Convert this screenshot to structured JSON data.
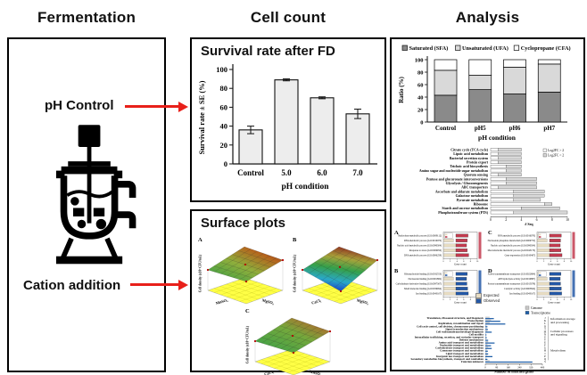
{
  "figure_titles": {
    "fermentation": "Fermentation",
    "cell_count": "Cell count",
    "analysis": "Analysis"
  },
  "fermentation_panel": {
    "ph_label": "pH Control",
    "cation_label": "Cation addition",
    "icon": "bioreactor-icon",
    "arrow_color": "#e8201a"
  },
  "chart_data": [
    {
      "id": "survival",
      "type": "bar",
      "title": "Survival rate after FD",
      "categories": [
        "Control",
        "5.0",
        "6.0",
        "7.0"
      ],
      "values": [
        36,
        89,
        70,
        53
      ],
      "errors": [
        4,
        1,
        1,
        5
      ],
      "xlabel": "pH condition",
      "ylabel": "Survival rate ± SE (%)",
      "ylim": [
        0,
        100
      ],
      "yticks": [
        0,
        20,
        40,
        60,
        80,
        100
      ],
      "bar_color": "#ededed"
    },
    {
      "id": "surfaces",
      "type": "surface",
      "title": "Surface plots",
      "zlabel": "Cell density (x10⁹ CFU/mL)",
      "floor_color": "#ffff45",
      "panels": [
        {
          "label": "A",
          "axis_left": "MnSO₄",
          "axis_right": "MgSO₄",
          "dip": false
        },
        {
          "label": "B",
          "axis_left": "CaCl₂",
          "axis_right": "MgSO₄",
          "dip": true
        },
        {
          "label": "C",
          "axis_left": "CaCl₂",
          "axis_right": "MnSO₄",
          "dip": false
        }
      ]
    },
    {
      "id": "fatty",
      "type": "stacked-bar",
      "categories": [
        "Control",
        "pH5",
        "pH6",
        "pH7"
      ],
      "series": [
        {
          "name": "Saturated (SFA)",
          "color": "#8a8a8a",
          "values": [
            43,
            52,
            45,
            48
          ]
        },
        {
          "name": "Unsaturated (UFA)",
          "color": "#d9d9d9",
          "values": [
            40,
            23,
            43,
            45
          ]
        },
        {
          "name": "Cyclopropane (CFA)",
          "color": "#ffffff",
          "values": [
            17,
            25,
            12,
            7
          ]
        }
      ],
      "xlabel": "pH condition",
      "ylabel": "Ratio (%)",
      "ylim": [
        0,
        100
      ],
      "yticks": [
        0,
        20,
        40,
        60,
        80,
        100
      ]
    },
    {
      "id": "kegg",
      "type": "stacked-hbar",
      "categories": [
        "Citrate cycle (TCA cycle)",
        "Lipoic acid metabolism",
        "Bacterial secretion system",
        "Protein export",
        "Teichoic acid biosynthesis",
        "Amino sugar and nucleotide sugar metabolism",
        "Quorum sensing",
        "Pentose and glucuronate interconversions",
        "Glycolysis / Gluconeogenesis",
        "ABC transporters",
        "Ascorbate and aldarate metabolism",
        "Galactose metabolism",
        "Pyruvate metabolism",
        "Ribosome",
        "Starch and sucrose metabolism",
        "Phosphotransferase system (PTS)"
      ],
      "series": [
        {
          "name": "Log2FC > 2",
          "color": "#ffffff",
          "values": [
            1,
            1,
            1,
            1,
            2,
            2,
            1,
            2,
            2,
            1,
            3,
            3,
            3,
            7,
            4,
            3
          ]
        },
        {
          "name": "Log2FC < 2",
          "color": "#d9d9d9",
          "values": [
            3,
            3,
            3,
            3,
            2,
            2,
            3,
            4,
            4,
            5,
            4,
            4,
            3.5,
            1,
            5,
            7
          ]
        }
      ],
      "xlabel": "# Seq",
      "xlim": [
        0,
        10
      ],
      "xticks": [
        0,
        2,
        4,
        6,
        8,
        10
      ]
    },
    {
      "id": "go",
      "type": "enrichment-panels",
      "legend": [
        "Expected",
        "Observed"
      ],
      "expected_color": "#e7dcc2",
      "xlabel": "Gene count",
      "xticks": [
        0,
        2,
        4,
        6,
        8,
        10
      ],
      "panels": [
        {
          "label": "A",
          "color": "#c23b4f",
          "categories": [
            "Nucleobase metabolic process (GO:0009112)",
            "RNA metabolic process (GO:0016070)",
            "Nucleic acid metabolic process (GO:0090304)",
            "Response to stress (GO:0006950)",
            "DNA metabolic process (GO:0006259)"
          ],
          "expected": [
            2,
            3,
            4,
            5,
            6
          ],
          "observed": [
            3.4,
            3.2,
            3.0,
            3.2,
            3.6
          ]
        },
        {
          "label": "B",
          "color": "#2458a6",
          "categories": [
            "Ribonucleotide binding (GO:0032553)",
            "Nucleoside binding (GO:0001882)",
            "Carbohydrate derivative binding (GO:0097367)",
            "Small molecule binding (GO:0036094)",
            "Ion binding (GO:0043167)"
          ],
          "expected": [
            2,
            3,
            4,
            5,
            6
          ],
          "observed": [
            3.2,
            3.0,
            3.1,
            3.3,
            3.5
          ]
        },
        {
          "label": "C",
          "color": "#c23b4f",
          "categories": [
            "RNA metabolic process (GO:0016070)",
            "Nucleoside phosphate metabolism (GO:0006753)",
            "Nucleic acid metabolic process (GO:0090304)",
            "Macromolecule metabolic process (GO:0043170)",
            "Gene expression (GO:0010467)"
          ],
          "expected": [
            2,
            3,
            4,
            5,
            6
          ],
          "observed": [
            3.3,
            3.1,
            3.0,
            3.2,
            3.5
          ]
        },
        {
          "label": "D",
          "color": "#2458a6",
          "categories": [
            "Active transmembrane transporter (GO:0022804)",
            "ATP hydrolysis activity (GO:0016887)",
            "Proton transmembrane transporter (GO:0015078)",
            "Catalytic activity (GO:0003824)",
            "Ion binding (GO:0043167)"
          ],
          "expected": [
            2,
            3,
            4,
            5,
            6
          ],
          "observed": [
            3.2,
            3.0,
            3.1,
            3.3,
            3.4
          ]
        }
      ]
    },
    {
      "id": "cog",
      "type": "grouped-hbar",
      "legend": [
        {
          "name": "Genome",
          "color": "#c6c6c6"
        },
        {
          "name": "Transcriptome",
          "color": "#1f5fa8"
        }
      ],
      "letters": [
        "J",
        "K",
        "L",
        "D",
        "T",
        "M",
        "N",
        "U",
        "V",
        "E",
        "F",
        "G",
        "H",
        "I",
        "P",
        "Q",
        "S"
      ],
      "categories": [
        "Translation, ribosomal structure, and biogenesis",
        "Transcription",
        "Replication, recombination and repair",
        "Cell cycle control, cell division, chromosome partitioning",
        "Signal transduction mechanisms",
        "Cell wall/membrane/envelope biogenesis",
        "Cell motility",
        "Intracellular trafficking, secretion, and vesicular transport",
        "Defense mechanisms",
        "Amino acid transport and metabolism",
        "Nucleotide transport and metabolism",
        "Carbohydrate transport and metabolism",
        "Coenzyme transport and metabolism",
        "Lipid transport and metabolism",
        "Inorganic ion transport and metabolism",
        "Secondary metabolites biosynthesis, transport and catabolism",
        "Function unknown"
      ],
      "series": {
        "genome": [
          30,
          40,
          30,
          8,
          10,
          15,
          5,
          5,
          8,
          20,
          15,
          20,
          10,
          10,
          15,
          8,
          30
        ],
        "transcriptome": [
          60,
          105,
          140,
          15,
          18,
          45,
          8,
          10,
          20,
          65,
          40,
          45,
          18,
          20,
          50,
          15,
          330
        ]
      },
      "groups": [
        {
          "name": "Information storage and processing",
          "lines": [
            "Information storage",
            "and processing"
          ],
          "start": 0,
          "end": 2
        },
        {
          "name": "Cellular processes and signaling",
          "lines": [
            "Cellular processes",
            "and signaling"
          ],
          "start": 3,
          "end": 8
        },
        {
          "name": "Metabolism",
          "lines": [
            "Metabolism"
          ],
          "start": 9,
          "end": 15
        }
      ],
      "xlabel": "Number of matched genes",
      "xlim": [
        0,
        400
      ],
      "xticks": [
        0,
        80,
        160,
        240,
        320,
        400
      ]
    }
  ]
}
